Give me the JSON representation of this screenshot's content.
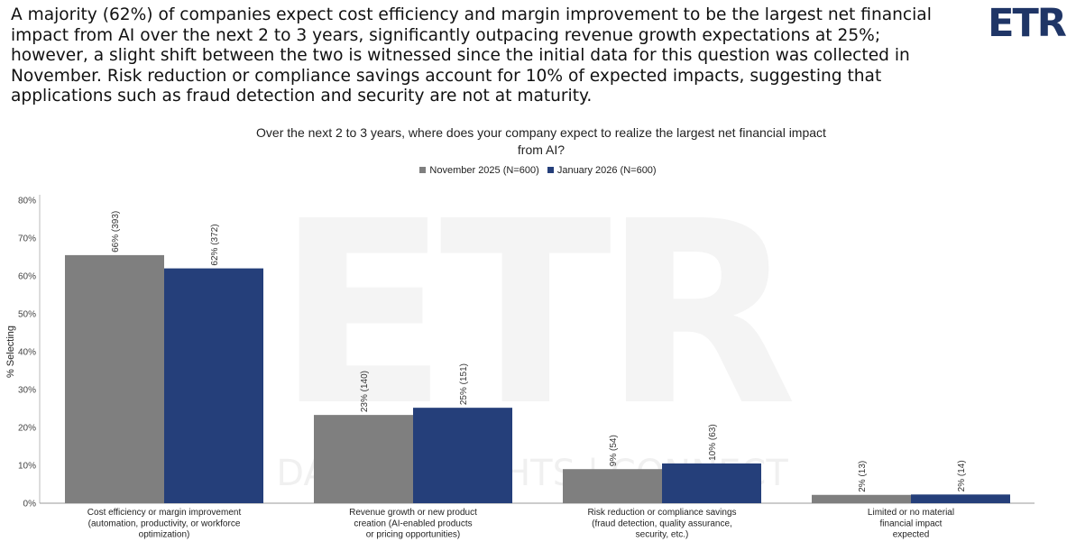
{
  "headline": "A majority (62%) of companies expect cost efficiency and margin improvement to be the largest net financial impact from AI over the next 2 to 3 years, significantly outpacing revenue growth expectations at 25%; however, a slight shift between the two is witnessed since the initial data for this question was collected in November. Risk reduction or compliance savings account for 10% of expected impacts, suggesting that applications such as fraud detection and security are not at maturity.",
  "logo_text": "ETR",
  "watermark": {
    "logo_text": "ETR",
    "tagline": "DATA | INSIGHTS | CONNECT"
  },
  "colors": {
    "nov": "#7f7f7f",
    "jan": "#253f7a",
    "brand": "#1f3566"
  },
  "chart_data": {
    "type": "bar",
    "title": "Over the next 2 to 3 years, where does your company expect to realize the largest net financial impact from AI?",
    "ylabel": "% Selecting",
    "xlabel": "",
    "ylim": [
      0,
      80
    ],
    "yticks": [
      "0%",
      "10%",
      "20%",
      "30%",
      "40%",
      "50%",
      "60%",
      "70%",
      "80%"
    ],
    "legend_position": "top-center",
    "grid": false,
    "categories": [
      [
        "Cost efficiency or margin improvement",
        "(automation, productivity, or workforce",
        "optimization)"
      ],
      [
        "Revenue growth or new product",
        "creation (AI-enabled products",
        "or pricing opportunities)"
      ],
      [
        "Risk reduction or compliance savings",
        "(fraud detection, quality assurance,",
        "security, etc.)"
      ],
      [
        "Limited or no material",
        "financial impact",
        "expected"
      ]
    ],
    "series": [
      {
        "name": "November 2025 (N=600)",
        "values": [
          65.5,
          23.3,
          9.0,
          2.2
        ],
        "labels": [
          "66% (393)",
          "23% (140)",
          "9% (54)",
          "2% (13)"
        ]
      },
      {
        "name": "January 2026 (N=600)",
        "values": [
          62.0,
          25.2,
          10.5,
          2.3
        ],
        "labels": [
          "62% (372)",
          "25% (151)",
          "10% (63)",
          "2% (14)"
        ]
      }
    ]
  }
}
